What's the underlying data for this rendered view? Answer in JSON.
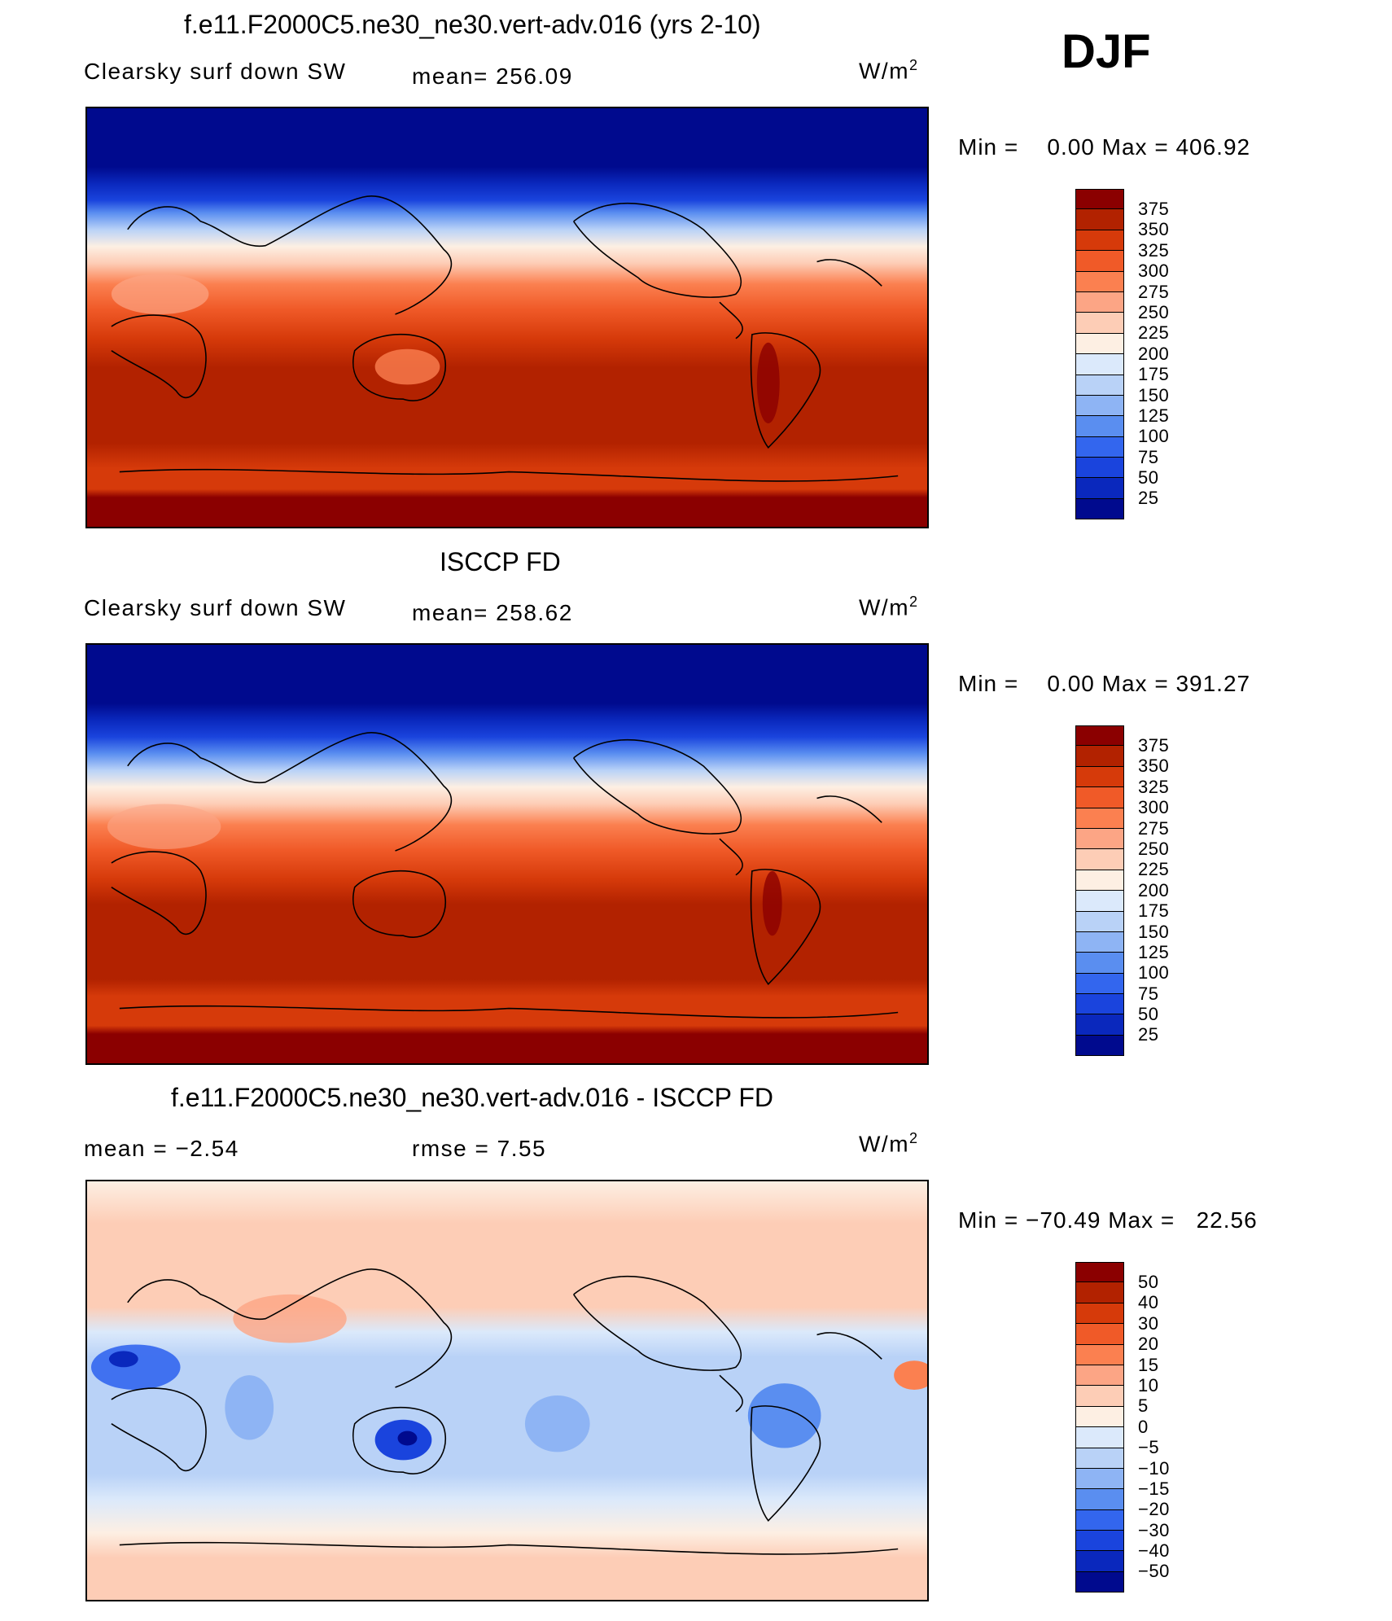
{
  "djf_label": "DJF",
  "panels": [
    {
      "id": "model",
      "title": "f.e11.F2000C5.ne30_ne30.vert-adv.016 (yrs 2-10)",
      "left_label": "Clearsky surf down SW",
      "mid_label": "mean= 256.09",
      "units_base": "W/m",
      "units_sup": "2",
      "minmax": "Min =    0.00 Max = 406.92",
      "colorbar_colors": [
        "#8b0000",
        "#b22200",
        "#d63a0a",
        "#f05a28",
        "#fb8050",
        "#fca585",
        "#fdcdb6",
        "#fdefe3",
        "#dbe9fb",
        "#b9d2f7",
        "#8eb4f4",
        "#5a8ef0",
        "#3366ee",
        "#1a44dd",
        "#0a28bd",
        "#000a8e"
      ],
      "colorbar_labels": [
        "375",
        "350",
        "325",
        "300",
        "275",
        "250",
        "225",
        "200",
        "175",
        "150",
        "125",
        "100",
        "75",
        "50",
        "25"
      ]
    },
    {
      "id": "obs",
      "title": "ISCCP FD",
      "left_label": "Clearsky surf down SW",
      "mid_label": "mean= 258.62",
      "units_base": "W/m",
      "units_sup": "2",
      "minmax": "Min =    0.00 Max = 391.27",
      "colorbar_colors": [
        "#8b0000",
        "#b22200",
        "#d63a0a",
        "#f05a28",
        "#fb8050",
        "#fca585",
        "#fdcdb6",
        "#fdefe3",
        "#dbe9fb",
        "#b9d2f7",
        "#8eb4f4",
        "#5a8ef0",
        "#3366ee",
        "#1a44dd",
        "#0a28bd",
        "#000a8e"
      ],
      "colorbar_labels": [
        "375",
        "350",
        "325",
        "300",
        "275",
        "250",
        "225",
        "200",
        "175",
        "150",
        "125",
        "100",
        "75",
        "50",
        "25"
      ]
    },
    {
      "id": "diff",
      "title": "f.e11.F2000C5.ne30_ne30.vert-adv.016 - ISCCP FD",
      "left_label": "mean =   −2.54",
      "mid_label": "rmse =    7.55",
      "units_base": "W/m",
      "units_sup": "2",
      "minmax": "Min = −70.49 Max =   22.56",
      "colorbar_colors": [
        "#8b0000",
        "#b22200",
        "#d63a0a",
        "#f05a28",
        "#fb8050",
        "#fca585",
        "#fdcdb6",
        "#fdefe3",
        "#dbe9fb",
        "#b9d2f7",
        "#8eb4f4",
        "#5a8ef0",
        "#3366ee",
        "#1a44dd",
        "#0a28bd",
        "#000a8e"
      ],
      "colorbar_labels": [
        "50",
        "40",
        "30",
        "20",
        "15",
        "10",
        "5",
        "0",
        "−5",
        "−10",
        "−15",
        "−20",
        "−30",
        "−40",
        "−50"
      ]
    }
  ]
}
